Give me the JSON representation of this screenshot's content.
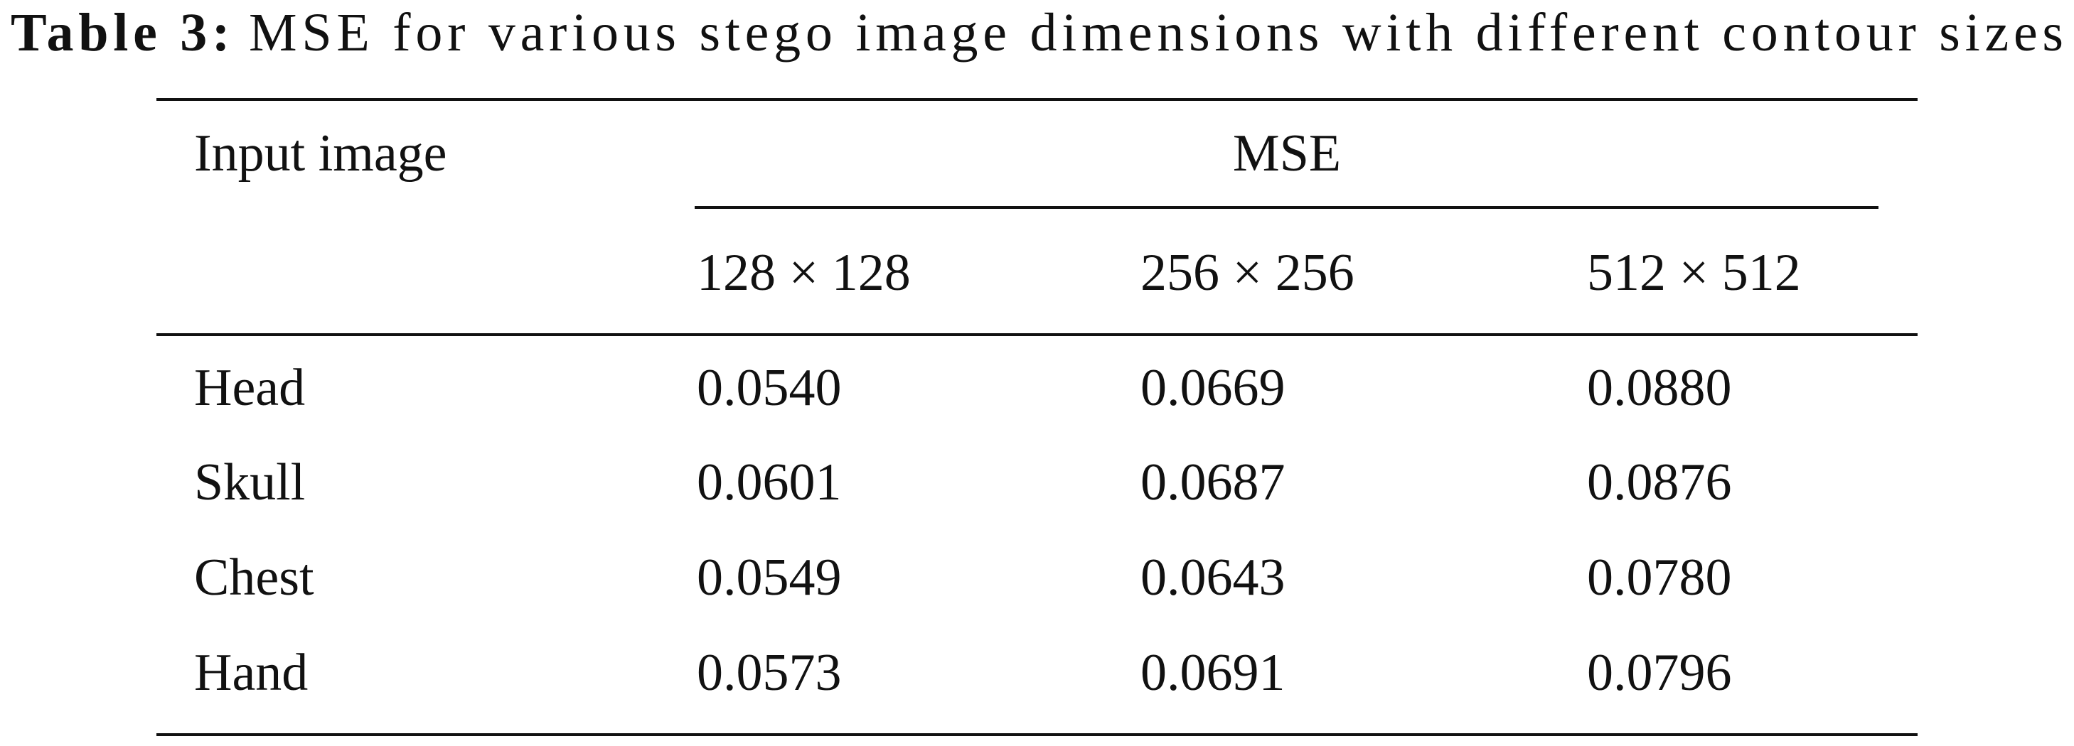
{
  "caption": {
    "label": "Table 3:",
    "text": "MSE for various stego image dimensions with different contour sizes"
  },
  "table": {
    "header": [
      "Input image",
      "MSE"
    ],
    "subheader": [
      "128 × 128",
      "256 × 256",
      "512 × 512"
    ],
    "rows": [
      [
        "Head",
        "0.0540",
        "0.0669",
        "0.0880"
      ],
      [
        "Skull",
        "0.0601",
        "0.0687",
        "0.0876"
      ],
      [
        "Chest",
        "0.0549",
        "0.0643",
        "0.0780"
      ],
      [
        "Hand",
        "0.0573",
        "0.0691",
        "0.0796"
      ]
    ]
  }
}
